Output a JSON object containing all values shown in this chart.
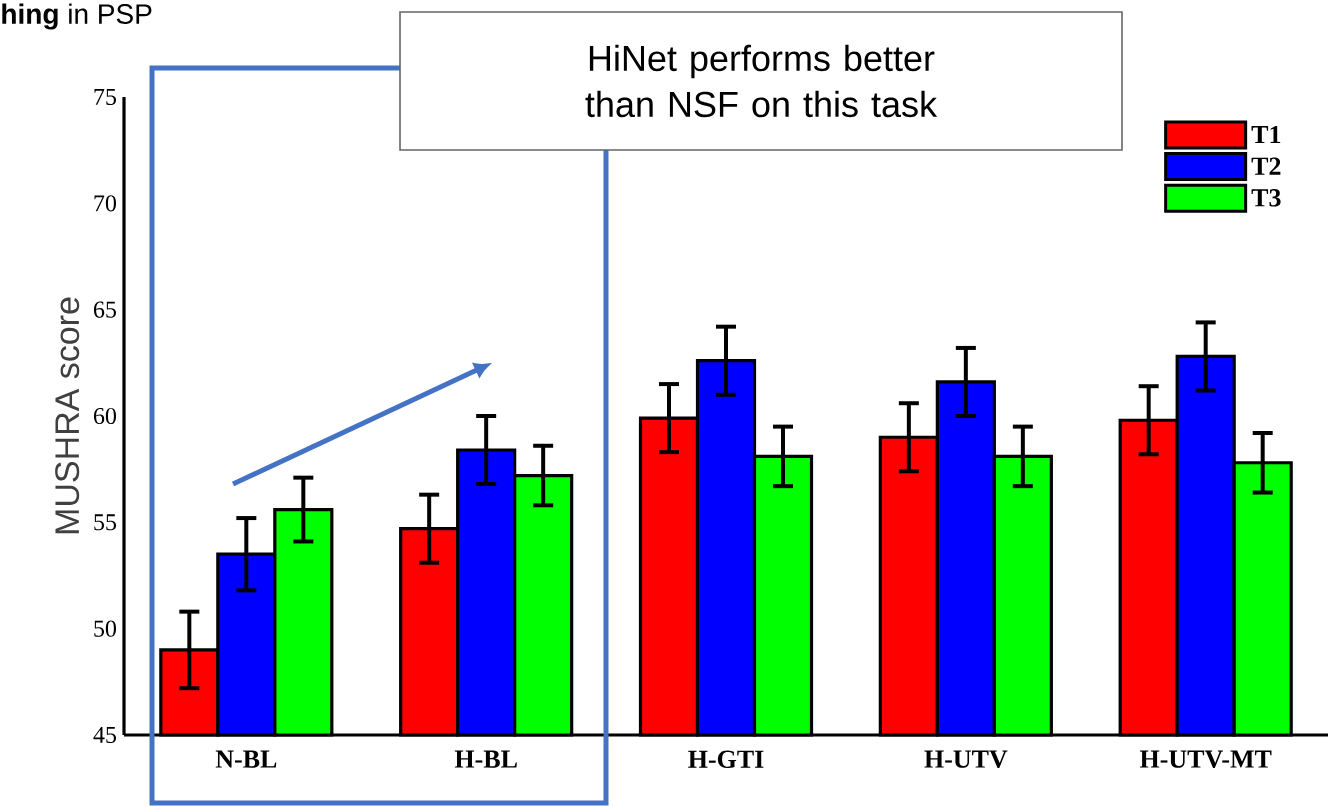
{
  "chart_data": {
    "type": "bar",
    "ylabel": "MUSHRA score",
    "categories": [
      "N-BL",
      "H-BL",
      "H-GTI",
      "H-UTV",
      "H-UTV-MT"
    ],
    "series": [
      {
        "name": "T1",
        "color": "#ff0000",
        "values": [
          49.0,
          54.7,
          59.9,
          59.0,
          59.8
        ],
        "errors": [
          1.8,
          1.6,
          1.6,
          1.6,
          1.6
        ]
      },
      {
        "name": "T2",
        "color": "#0000ff",
        "values": [
          53.5,
          58.4,
          62.6,
          61.6,
          62.8
        ],
        "errors": [
          1.7,
          1.6,
          1.6,
          1.6,
          1.6
        ]
      },
      {
        "name": "T3",
        "color": "#00ff00",
        "values": [
          55.6,
          57.2,
          58.1,
          58.1,
          57.8
        ],
        "errors": [
          1.5,
          1.4,
          1.4,
          1.4,
          1.4
        ]
      }
    ],
    "ylim": [
      45,
      75
    ],
    "yticks": [
      45,
      50,
      55,
      60,
      65,
      70,
      75
    ],
    "legend": "top right",
    "annotations": [
      "**hing** in PSP",
      "HiNet performs better than NSF on this task"
    ]
  }
}
